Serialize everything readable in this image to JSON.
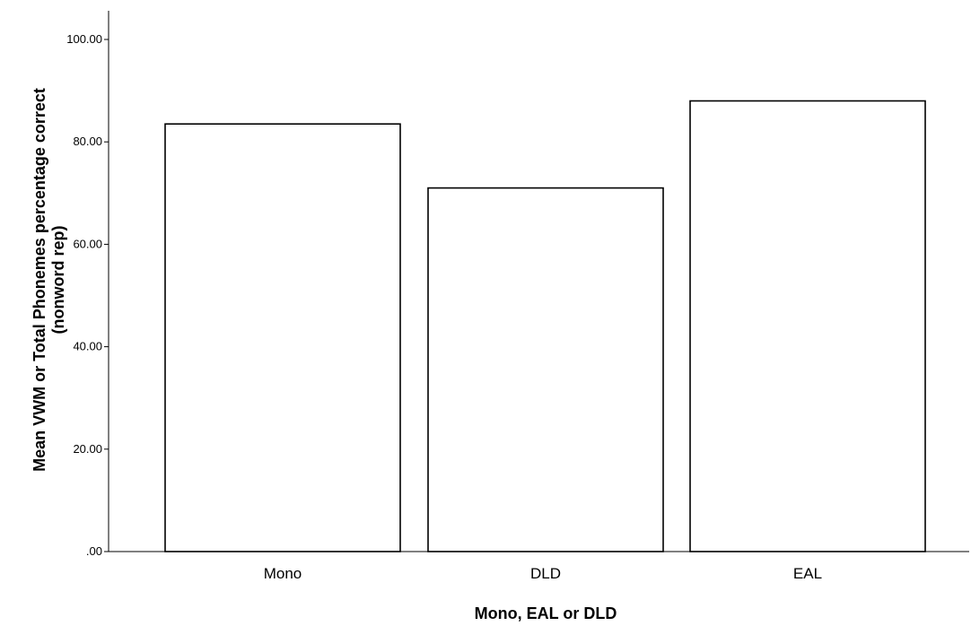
{
  "chart_data": {
    "type": "bar",
    "categories": [
      "Mono",
      "DLD",
      "EAL"
    ],
    "values": [
      83.5,
      71.0,
      88.0
    ],
    "xlabel": "Mono, EAL or DLD",
    "ylabel_lines": [
      "Mean VWM or Total Phonemes percentage correct",
      "(nonword rep)"
    ],
    "ylim": [
      0,
      105
    ],
    "yticks": [
      ".00",
      "20.00",
      "40.00",
      "60.00",
      "80.00",
      "100.00"
    ],
    "ytick_values": [
      0,
      20,
      40,
      60,
      80,
      100
    ],
    "grid": false,
    "legend": "none",
    "bar_fill": "#ffffff",
    "bar_stroke": "#000000"
  }
}
